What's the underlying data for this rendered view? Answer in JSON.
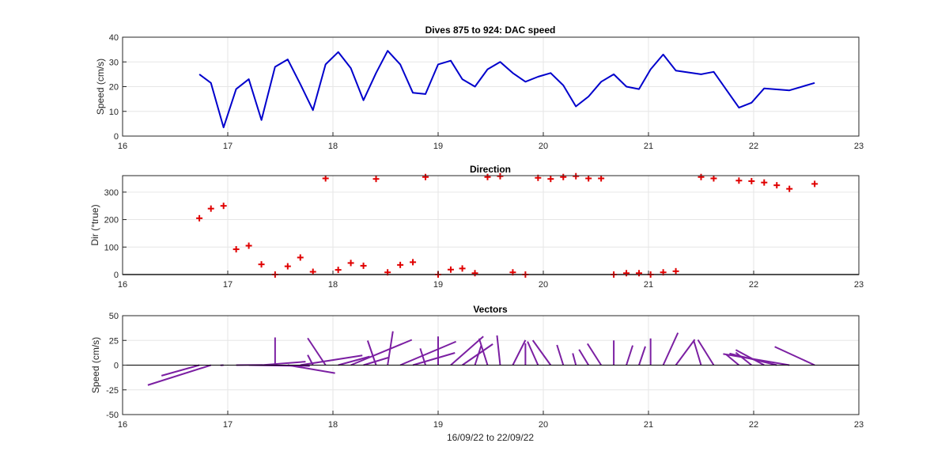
{
  "figure": {
    "xlabel": "16/09/22 to 22/09/22"
  },
  "colors": {
    "speed_line": "#0000cc",
    "direction_marker": "#e00000",
    "vector_line": "#7b1fa2",
    "zero_line": "#000000"
  },
  "chart_data": [
    {
      "id": "speed",
      "type": "line",
      "title": "Dives 875 to 924: DAC speed",
      "xlabel": "",
      "ylabel": "Speed (cm/s)",
      "xlim": [
        16,
        23
      ],
      "ylim": [
        0,
        40
      ],
      "xticks": [
        16,
        17,
        18,
        19,
        20,
        21,
        22,
        23
      ],
      "yticks": [
        0,
        10,
        20,
        30,
        40
      ],
      "grid": true,
      "series": [
        {
          "x": [
            16.73,
            16.84,
            16.96,
            17.08,
            17.2,
            17.32,
            17.45,
            17.57,
            17.69,
            17.81,
            17.93,
            18.05,
            18.17,
            18.29,
            18.41,
            18.52,
            18.64,
            18.76,
            18.88,
            19.0,
            19.12,
            19.23,
            19.35,
            19.47,
            19.59,
            19.71,
            19.83,
            19.95,
            20.07,
            20.19,
            20.31,
            20.43,
            20.55,
            20.67,
            20.79,
            20.91,
            21.02,
            21.14,
            21.26,
            21.5,
            21.62,
            21.86,
            21.98,
            22.1,
            22.34,
            22.58
          ],
          "y": [
            25,
            21.5,
            3.5,
            19,
            23,
            6.5,
            28,
            31,
            21,
            10.5,
            29,
            34,
            27.5,
            14.5,
            25.5,
            34.5,
            29,
            17.5,
            17,
            29,
            30.5,
            23,
            20,
            27,
            30,
            25.5,
            22,
            24,
            25.5,
            20.5,
            12,
            16,
            22,
            25,
            20,
            19,
            27,
            33,
            26.5,
            25,
            26,
            11.5,
            13.5,
            19.3,
            18.5,
            21.5
          ]
        }
      ]
    },
    {
      "id": "direction",
      "type": "scatter",
      "title": "Direction",
      "xlabel": "",
      "ylabel": "Dir (°true)",
      "xlim": [
        16,
        23
      ],
      "ylim": [
        0,
        360
      ],
      "xticks": [
        16,
        17,
        18,
        19,
        20,
        21,
        22,
        23
      ],
      "yticks": [
        0,
        100,
        200,
        300
      ],
      "grid": true,
      "series": [
        {
          "x": [
            16.73,
            16.84,
            16.96,
            17.08,
            17.2,
            17.32,
            17.45,
            17.57,
            17.69,
            17.81,
            17.93,
            18.05,
            18.17,
            18.29,
            18.41,
            18.52,
            18.64,
            18.76,
            18.88,
            19.0,
            19.12,
            19.23,
            19.35,
            19.47,
            19.59,
            19.71,
            19.83,
            19.95,
            20.07,
            20.19,
            20.31,
            20.43,
            20.55,
            20.67,
            20.79,
            20.91,
            21.02,
            21.14,
            21.26,
            21.5,
            21.62,
            21.86,
            21.98,
            22.1,
            22.22,
            22.34,
            22.58
          ],
          "y": [
            205,
            240,
            250,
            92,
            105,
            37,
            0,
            30,
            62,
            10,
            350,
            17,
            42,
            32,
            348,
            8,
            35,
            45,
            355,
            0,
            18,
            22,
            5,
            355,
            358,
            8,
            0,
            352,
            348,
            355,
            358,
            350,
            350,
            0,
            5,
            5,
            0,
            8,
            12,
            355,
            350,
            342,
            340,
            335,
            325,
            312,
            330
          ]
        }
      ]
    },
    {
      "id": "vectors",
      "type": "line",
      "title": "Vectors",
      "xlabel": "16/09/22 to 22/09/22",
      "ylabel": "Speed (cm/s)",
      "xlim": [
        16,
        23
      ],
      "ylim": [
        -50,
        50
      ],
      "xticks": [
        16,
        17,
        18,
        19,
        20,
        21,
        22,
        23
      ],
      "yticks": [
        -50,
        -25,
        0,
        25,
        50
      ],
      "grid": true,
      "segments": [
        {
          "x0": 16.73,
          "u": -0.36,
          "v": -10.7
        },
        {
          "x0": 16.84,
          "u": -0.6,
          "v": -20.2
        },
        {
          "x0": 16.96,
          "u": -0.03,
          "v": -0.2
        },
        {
          "x0": 17.08,
          "u": 0.25,
          "v": 0.25
        },
        {
          "x0": 17.2,
          "u": 0.58,
          "v": -0.87
        },
        {
          "x0": 17.32,
          "u": 0.42,
          "v": 3.5
        },
        {
          "x0": 17.45,
          "u": 0.0,
          "v": 28.0
        },
        {
          "x0": 17.57,
          "u": 0.45,
          "v": -8.1
        },
        {
          "x0": 17.69,
          "u": 0.59,
          "v": 9.8
        },
        {
          "x0": 17.81,
          "u": -0.05,
          "v": 10.3
        },
        {
          "x0": 17.93,
          "u": -0.17,
          "v": 27.3
        },
        {
          "x0": 18.05,
          "u": 0.3,
          "v": 8.7
        },
        {
          "x0": 18.17,
          "u": 0.58,
          "v": 25.6
        },
        {
          "x0": 18.29,
          "u": 0.24,
          "v": 7.7
        },
        {
          "x0": 18.41,
          "u": -0.08,
          "v": 24.8
        },
        {
          "x0": 18.52,
          "u": 0.05,
          "v": 34.2
        },
        {
          "x0": 18.64,
          "u": 0.53,
          "v": 23.8
        },
        {
          "x0": 18.76,
          "u": 0.4,
          "v": 12.4
        },
        {
          "x0": 18.88,
          "u": -0.05,
          "v": 16.9
        },
        {
          "x0": 19.0,
          "u": 0.0,
          "v": 29.0
        },
        {
          "x0": 19.12,
          "u": 0.31,
          "v": 29.0
        },
        {
          "x0": 19.23,
          "u": 0.29,
          "v": 21.3
        },
        {
          "x0": 19.35,
          "u": 0.06,
          "v": 19.9
        },
        {
          "x0": 19.47,
          "u": -0.08,
          "v": 26.9
        },
        {
          "x0": 19.59,
          "u": -0.03,
          "v": 30.0
        },
        {
          "x0": 19.71,
          "u": 0.12,
          "v": 25.3
        },
        {
          "x0": 19.83,
          "u": 0.0,
          "v": 22.0
        },
        {
          "x0": 19.95,
          "u": -0.1,
          "v": 23.9
        },
        {
          "x0": 20.07,
          "u": -0.17,
          "v": 25.1
        },
        {
          "x0": 20.19,
          "u": -0.06,
          "v": 20.4
        },
        {
          "x0": 20.31,
          "u": -0.03,
          "v": 12.0
        },
        {
          "x0": 20.43,
          "u": -0.09,
          "v": 15.8
        },
        {
          "x0": 20.55,
          "u": -0.13,
          "v": 21.7
        },
        {
          "x0": 20.67,
          "u": 0.0,
          "v": 25.0
        },
        {
          "x0": 20.79,
          "u": 0.06,
          "v": 19.9
        },
        {
          "x0": 20.91,
          "u": 0.06,
          "v": 18.9
        },
        {
          "x0": 21.02,
          "u": 0.0,
          "v": 27.0
        },
        {
          "x0": 21.14,
          "u": 0.14,
          "v": 32.7
        },
        {
          "x0": 21.26,
          "u": 0.18,
          "v": 25.9
        },
        {
          "x0": 21.5,
          "u": -0.07,
          "v": 24.9
        },
        {
          "x0": 21.62,
          "u": -0.15,
          "v": 25.6
        },
        {
          "x0": 21.86,
          "u": -0.12,
          "v": 10.6
        },
        {
          "x0": 21.98,
          "u": -0.15,
          "v": 12.7
        },
        {
          "x0": 22.1,
          "u": -0.27,
          "v": 15.4
        },
        {
          "x0": 22.22,
          "u": -0.45,
          "v": 11.7
        },
        {
          "x0": 22.34,
          "u": -0.63,
          "v": 11.3
        },
        {
          "x0": 22.58,
          "u": -0.38,
          "v": 18.6
        }
      ]
    }
  ]
}
